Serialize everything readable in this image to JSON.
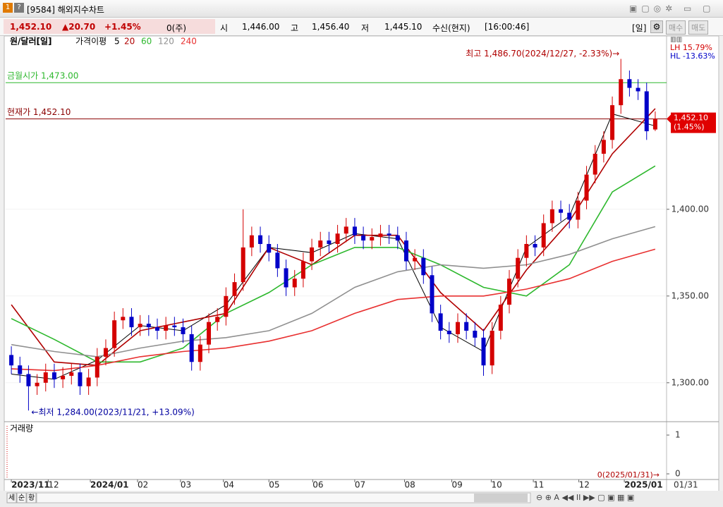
{
  "window": {
    "title": "[9584] 해외지수차트"
  },
  "quote": {
    "price": "1,452.10",
    "change": "▲20.70",
    "rate": "+1.45%",
    "volume": "0(주)",
    "open_label": "시",
    "open": "1,446.00",
    "high_label": "고",
    "high": "1,456.40",
    "low_label": "저",
    "low": "1,445.10",
    "feed": "수신(현지)",
    "time": "[16:00:46]",
    "period": "[일]",
    "buy": "매수",
    "sell": "매도"
  },
  "chart_data": {
    "type": "candlestick",
    "title": "원/달러[일]",
    "ma_label": "가격이평",
    "up_color": "#d40000",
    "down_color": "#0000c8",
    "xlim": [
      -0.5,
      75.5
    ],
    "xticks": [
      {
        "value": 0,
        "label": "2023/11"
      },
      {
        "value": 4.3,
        "label": "12"
      },
      {
        "value": 9.2,
        "label": "2024/01"
      },
      {
        "value": 14.7,
        "label": "02"
      },
      {
        "value": 19.7,
        "label": "03"
      },
      {
        "value": 24.7,
        "label": "04"
      },
      {
        "value": 30,
        "label": "05"
      },
      {
        "value": 35.1,
        "label": "06"
      },
      {
        "value": 40,
        "label": "07"
      },
      {
        "value": 45.8,
        "label": "08"
      },
      {
        "value": 51.3,
        "label": "09"
      },
      {
        "value": 55.9,
        "label": "10"
      },
      {
        "value": 60.8,
        "label": "11"
      },
      {
        "value": 66.1,
        "label": "12"
      },
      {
        "value": 71.4,
        "label": "2025/01"
      }
    ],
    "x_end_label": "01/31",
    "ylim": [
      1280,
      1493
    ],
    "yticks": [
      {
        "value": 1300,
        "label": "1,300.00"
      },
      {
        "value": 1350,
        "label": "1,350.00"
      },
      {
        "value": 1400,
        "label": "1,400.00"
      }
    ],
    "open": [
      1316,
      1310,
      1305,
      1298,
      1300,
      1306,
      1302,
      1304,
      1306,
      1298,
      1303,
      1315,
      1320,
      1336,
      1338,
      1332,
      1334,
      1332,
      1330,
      1333,
      1332,
      1328,
      1312,
      1322,
      1335,
      1338,
      1350,
      1358,
      1378,
      1385,
      1380,
      1375,
      1366,
      1355,
      1360,
      1370,
      1378,
      1382,
      1380,
      1386,
      1390,
      1385,
      1382,
      1384,
      1386,
      1385,
      1382,
      1370,
      1372,
      1362,
      1340,
      1330,
      1328,
      1335,
      1330,
      1326,
      1310,
      1330,
      1345,
      1360,
      1372,
      1380,
      1378,
      1392,
      1400,
      1398,
      1394,
      1405,
      1420,
      1432,
      1440,
      1460,
      1475,
      1470,
      1468,
      1446
    ],
    "high": [
      1321,
      1315,
      1310,
      1305,
      1311,
      1311,
      1309,
      1311,
      1311,
      1308,
      1320,
      1325,
      1341,
      1343,
      1343,
      1339,
      1339,
      1337,
      1338,
      1338,
      1337,
      1333,
      1327,
      1340,
      1343,
      1355,
      1363,
      1400,
      1390,
      1390,
      1385,
      1380,
      1371,
      1365,
      1375,
      1383,
      1387,
      1387,
      1391,
      1395,
      1395,
      1390,
      1389,
      1391,
      1391,
      1390,
      1387,
      1377,
      1377,
      1367,
      1345,
      1335,
      1340,
      1340,
      1335,
      1331,
      1335,
      1350,
      1365,
      1377,
      1385,
      1385,
      1397,
      1405,
      1405,
      1403,
      1410,
      1425,
      1437,
      1445,
      1465,
      1486.7,
      1480,
      1475,
      1473,
      1456.4
    ],
    "low": [
      1305,
      1300,
      1284,
      1293,
      1295,
      1297,
      1297,
      1299,
      1293,
      1293,
      1298,
      1310,
      1315,
      1331,
      1327,
      1327,
      1327,
      1325,
      1325,
      1327,
      1323,
      1307,
      1307,
      1317,
      1330,
      1333,
      1345,
      1353,
      1373,
      1375,
      1370,
      1361,
      1350,
      1350,
      1355,
      1365,
      1373,
      1375,
      1375,
      1381,
      1380,
      1377,
      1377,
      1379,
      1380,
      1377,
      1365,
      1365,
      1357,
      1335,
      1325,
      1323,
      1323,
      1325,
      1321,
      1304,
      1305,
      1325,
      1340,
      1355,
      1367,
      1373,
      1373,
      1387,
      1393,
      1389,
      1389,
      1400,
      1415,
      1427,
      1435,
      1455,
      1465,
      1463,
      1440,
      1445.1
    ],
    "close": [
      1310,
      1305,
      1298,
      1300,
      1306,
      1302,
      1304,
      1306,
      1298,
      1303,
      1315,
      1320,
      1336,
      1338,
      1332,
      1334,
      1332,
      1330,
      1333,
      1332,
      1328,
      1312,
      1322,
      1335,
      1338,
      1350,
      1358,
      1378,
      1385,
      1380,
      1375,
      1366,
      1355,
      1360,
      1370,
      1378,
      1382,
      1380,
      1386,
      1390,
      1385,
      1382,
      1384,
      1386,
      1385,
      1382,
      1370,
      1372,
      1362,
      1340,
      1330,
      1328,
      1335,
      1330,
      1326,
      1310,
      1330,
      1345,
      1360,
      1372,
      1380,
      1378,
      1392,
      1400,
      1398,
      1394,
      1405,
      1420,
      1432,
      1440,
      1460,
      1475,
      1470,
      1468,
      1445,
      1452.1
    ],
    "ma_x": [
      0,
      5,
      10,
      15,
      20,
      25,
      30,
      35,
      40,
      45,
      50,
      55,
      60,
      65,
      70,
      75
    ],
    "series": [
      {
        "name": "5",
        "color": "#000000",
        "values": [
          1305,
          1302,
          1313,
          1333,
          1330,
          1345,
          1378,
          1375,
          1386,
          1383,
          1332,
          1318,
          1378,
          1396,
          1455,
          1448
        ]
      },
      {
        "name": "20",
        "color": "#b00000",
        "values": [
          1345,
          1312,
          1310,
          1330,
          1335,
          1340,
          1378,
          1368,
          1385,
          1385,
          1352,
          1330,
          1365,
          1393,
          1432,
          1458
        ]
      },
      {
        "name": "60",
        "color": "#2db82d",
        "values": [
          1337,
          1325,
          1312,
          1312,
          1320,
          1340,
          1352,
          1368,
          1378,
          1378,
          1368,
          1355,
          1350,
          1368,
          1410,
          1425
        ]
      },
      {
        "name": "120",
        "color": "#909090",
        "values": [
          1322,
          1318,
          1315,
          1320,
          1324,
          1326,
          1330,
          1340,
          1355,
          1364,
          1368,
          1366,
          1368,
          1374,
          1383,
          1390
        ]
      },
      {
        "name": "240",
        "color": "#e83030",
        "values": [
          1308,
          1307,
          1310,
          1315,
          1318,
          1320,
          1324,
          1330,
          1340,
          1348,
          1350,
          1350,
          1354,
          1360,
          1370,
          1377
        ]
      }
    ],
    "hlines": [
      {
        "label": "금월시가 1,473.00",
        "value": 1473,
        "color": "#2db82d"
      },
      {
        "label": "현재가 1,452.10",
        "value": 1452.1,
        "color": "#8b0000"
      }
    ],
    "annotations": [
      {
        "text": "최고 1,486.70(2024/12/27, -2.33%)→",
        "x": 71,
        "y": 1486.7,
        "color": "#b00000"
      },
      {
        "text": "←최저 1,284.00(2023/11/21, +13.09%)",
        "x": 2,
        "y": 1284,
        "color": "#0000a0"
      }
    ],
    "range_stats": [
      "LH  15.79%",
      "HL -13.63%"
    ],
    "last_tag": [
      "1,452.10",
      "(1.45%)"
    ],
    "last_value": 1452.1,
    "volume_pane": {
      "title": "거래량",
      "ylim": [
        0,
        1
      ],
      "yticks": [
        0,
        1
      ],
      "annotation": "0(2025/01/31)→"
    }
  },
  "toolbar": [
    "세",
    "순",
    "황"
  ]
}
